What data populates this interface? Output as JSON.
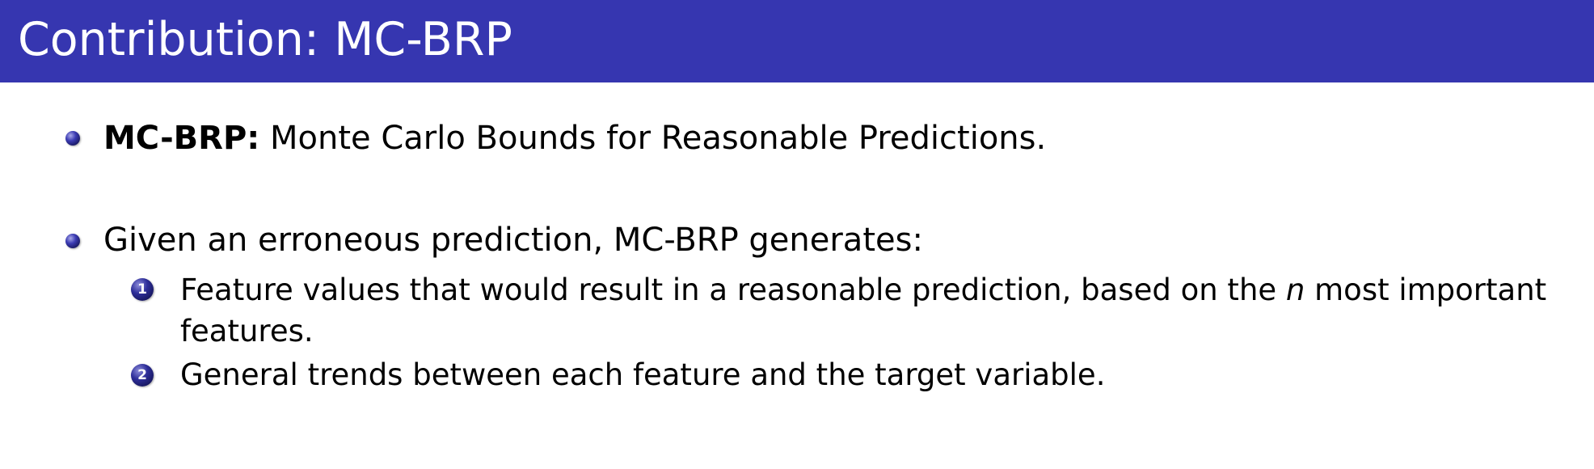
{
  "slide": {
    "title": "Contribution: MC-BRP",
    "bullets": [
      {
        "bold": "MC-BRP:",
        "text": " Monte Carlo Bounds for Reasonable Predictions."
      },
      {
        "text": "Given an erroneous prediction, MC-BRP generates:"
      }
    ],
    "items": [
      {
        "number": "1",
        "line1_before": "Feature values that would result in a reasonable prediction, based on the ",
        "line1_var": "n",
        "line1_after": " most important",
        "line2": "features."
      },
      {
        "number": "2",
        "text": "General trends between each feature and the target variable."
      }
    ]
  },
  "colors": {
    "title_bar": "#3636b0",
    "title_text": "#ffffff",
    "bullet": "#2e2e99"
  }
}
